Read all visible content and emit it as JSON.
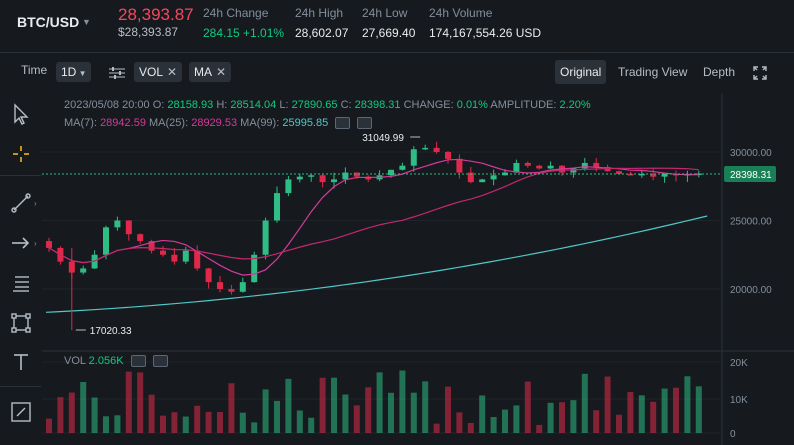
{
  "header": {
    "symbol": "BTC/USD",
    "price": "28,393.87",
    "price_sub": "$28,393.87",
    "stats": [
      {
        "label": "24h Change",
        "value": "284.15 +1.01%",
        "up": true
      },
      {
        "label": "24h High",
        "value": "28,602.07"
      },
      {
        "label": "24h Low",
        "value": "27,669.40"
      },
      {
        "label": "24h Volume",
        "value": "174,167,554.26 USD"
      }
    ]
  },
  "toolbar": {
    "time_label": "Time",
    "interval": "1D",
    "indicators": [
      "VOL",
      "MA"
    ],
    "views": [
      "Original",
      "Trading View",
      "Depth"
    ],
    "active_view": "Original"
  },
  "info": {
    "date": "2023/05/08 20:00",
    "o_label": "O:",
    "o": "28158.93",
    "h_label": "H:",
    "h": "28514.04",
    "l_label": "L:",
    "l": "27890.65",
    "c_label": "C:",
    "c": "28398.31",
    "change_label": "CHANGE:",
    "change": "0.01%",
    "amp_label": "AMPLITUDE:",
    "amp": "2.20%",
    "ma7_label": "MA(7):",
    "ma7": "28942.59",
    "ma25_label": "MA(25):",
    "ma25": "28929.53",
    "ma99_label": "MA(99):",
    "ma99": "25995.85",
    "vol_label": "VOL",
    "vol": "2.056K"
  },
  "colors": {
    "up": "#2ebd85",
    "down": "#e0294a",
    "ma7": "#e6b400",
    "ma25": "#d43a9c",
    "ma99": "#50c8c8"
  },
  "chart_data": {
    "type": "candlestick",
    "y_ticks": [
      "30000.00",
      "25000.00",
      "20000.00"
    ],
    "vol_ticks": [
      "20K",
      "10K",
      "0"
    ],
    "current_price": "28398.31",
    "high_marker": "31049.99",
    "low_marker": "17020.33"
  }
}
